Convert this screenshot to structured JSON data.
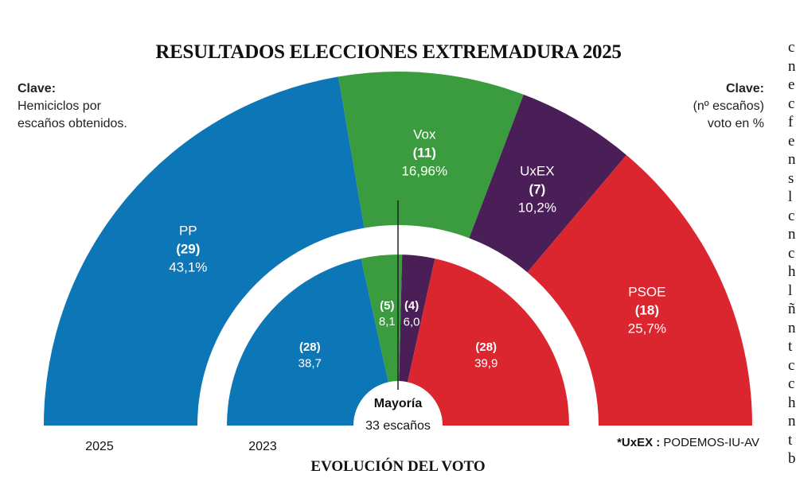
{
  "title": "RESULTADOS ELECCIONES EXTREMADURA 2025",
  "key_left": {
    "heading": "Clave:",
    "line1": "Hemiciclos por",
    "line2": "escaños obtenidos."
  },
  "key_right": {
    "heading": "Clave:",
    "line1": "(nº escaños)",
    "line2": "voto en %"
  },
  "footnote": {
    "label": "*UxEX :",
    "text": "PODEMOS-IU-AV"
  },
  "subtitle": "EVOLUCIÓN DEL VOTO",
  "right_column_fragments": [
    "c",
    "n",
    "e",
    "c",
    "f",
    "e",
    "n",
    "s",
    "l",
    "c",
    "n",
    "c",
    "h",
    "l",
    "ñ",
    "n",
    "t",
    "c",
    "c",
    "h",
    "n",
    "t",
    "b"
  ],
  "chart_data": {
    "type": "pie",
    "variant": "parliament-hemicycle",
    "title": "RESULTADOS ELECCIONES EXTREMADURA 2025",
    "majority": {
      "label": "Mayoría",
      "text": "33 escaños",
      "seats": 33
    },
    "series": [
      {
        "name": "2025",
        "label": "2025",
        "total_seats": 65,
        "parties": [
          {
            "name": "PP",
            "seats": 29,
            "seats_label": "(29)",
            "vote_label": "43,1%",
            "vote": 43.1,
            "color": "#0c76b6"
          },
          {
            "name": "Vox",
            "seats": 11,
            "seats_label": "(11)",
            "vote_label": "16,96%",
            "vote": 16.96,
            "color": "#3a9c3f"
          },
          {
            "name": "UxEX",
            "seats": 7,
            "seats_label": "(7)",
            "vote_label": "10,2%",
            "vote": 10.2,
            "color": "#4a1f57"
          },
          {
            "name": "PSOE",
            "seats": 18,
            "seats_label": "(18)",
            "vote_label": "25,7%",
            "vote": 25.7,
            "color": "#db2630"
          }
        ]
      },
      {
        "name": "2023",
        "label": "2023",
        "total_seats": 65,
        "parties": [
          {
            "name": "PP",
            "seats": 28,
            "seats_label": "(28)",
            "vote_label": "38,7",
            "vote": 38.7,
            "color": "#0c76b6"
          },
          {
            "name": "Vox",
            "seats": 5,
            "seats_label": "(5)",
            "vote_label": "8,1",
            "vote": 8.1,
            "color": "#3a9c3f"
          },
          {
            "name": "UxEX",
            "seats": 4,
            "seats_label": "(4)",
            "vote_label": "6,0",
            "vote": 6.0,
            "color": "#4a1f57"
          },
          {
            "name": "PSOE",
            "seats": 28,
            "seats_label": "(28)",
            "vote_label": "39,9",
            "vote": 39.9,
            "color": "#db2630"
          }
        ]
      }
    ]
  }
}
